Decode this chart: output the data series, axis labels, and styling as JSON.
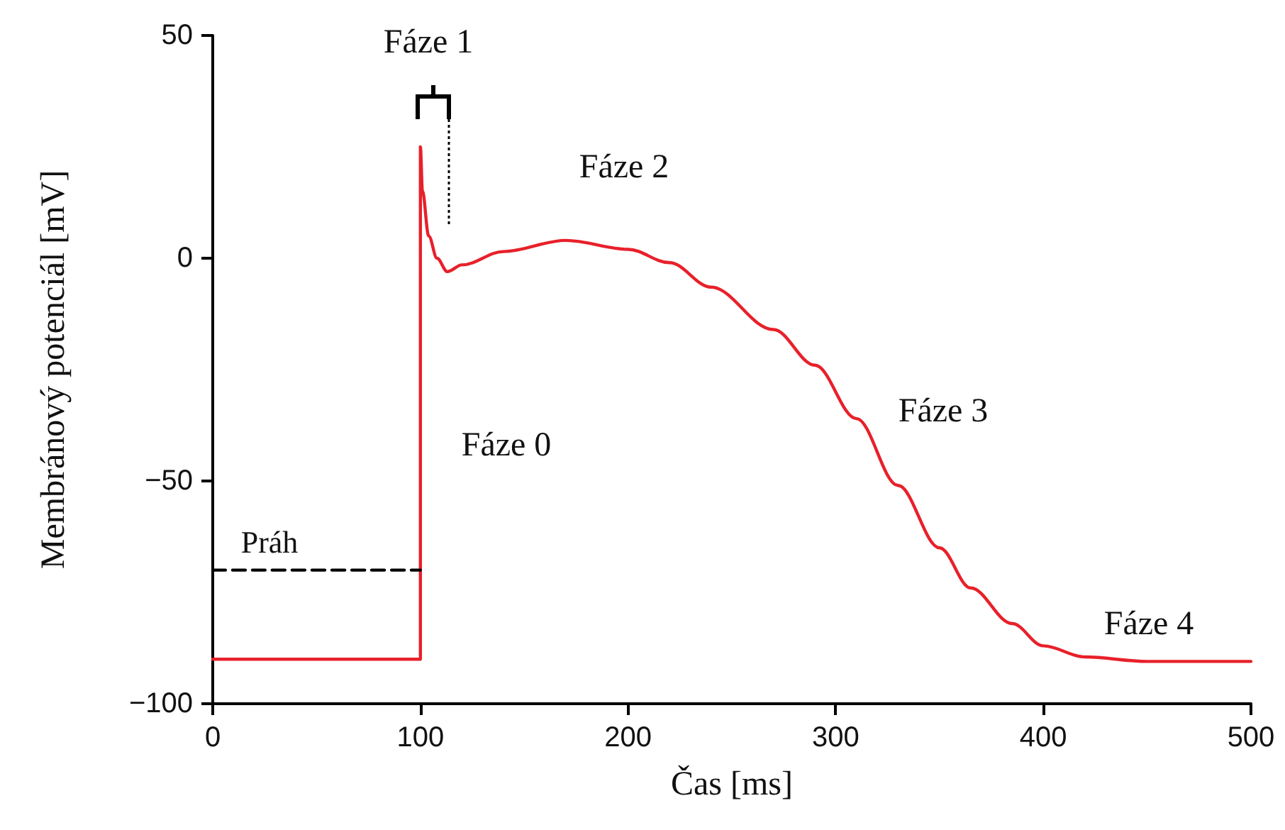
{
  "chart_data": {
    "type": "line",
    "xlabel": "Čas [ms]",
    "ylabel": "Membránový potenciál [mV]",
    "xlim": [
      0,
      500
    ],
    "xticks": [
      0,
      100,
      200,
      300,
      400,
      500
    ],
    "ylim": [
      -100,
      50
    ],
    "yticks": [
      {
        "value": -100,
        "label": "−100"
      },
      {
        "value": -50,
        "label": "−50"
      },
      0,
      50
    ],
    "grid": false,
    "legend": false,
    "marker": "none",
    "series": [
      {
        "color": "#e8202a",
        "line_style": "solid",
        "x": [
          0,
          100,
          100,
          101,
          104,
          108,
          113,
          120,
          140,
          170,
          200,
          220,
          240,
          270,
          290,
          310,
          330,
          350,
          365,
          385,
          400,
          420,
          450,
          500
        ],
        "values": [
          -90,
          -90,
          25,
          15,
          5,
          0,
          -3,
          -1.5,
          1.5,
          4,
          2,
          -1,
          -6.5,
          -16,
          -24,
          -36,
          -51,
          -65,
          -74,
          -82,
          -87,
          -89.5,
          -90.5,
          -90.5
        ]
      },
      {
        "name": "Práh",
        "color": "#000000",
        "line_style": "dashed",
        "x": [
          0,
          100
        ],
        "values": [
          -70,
          -70
        ]
      }
    ],
    "annotations": [
      "Fáze 0",
      "Fáze 1",
      "Fáze 2",
      "Fáze 3",
      "Fáze 4"
    ]
  }
}
